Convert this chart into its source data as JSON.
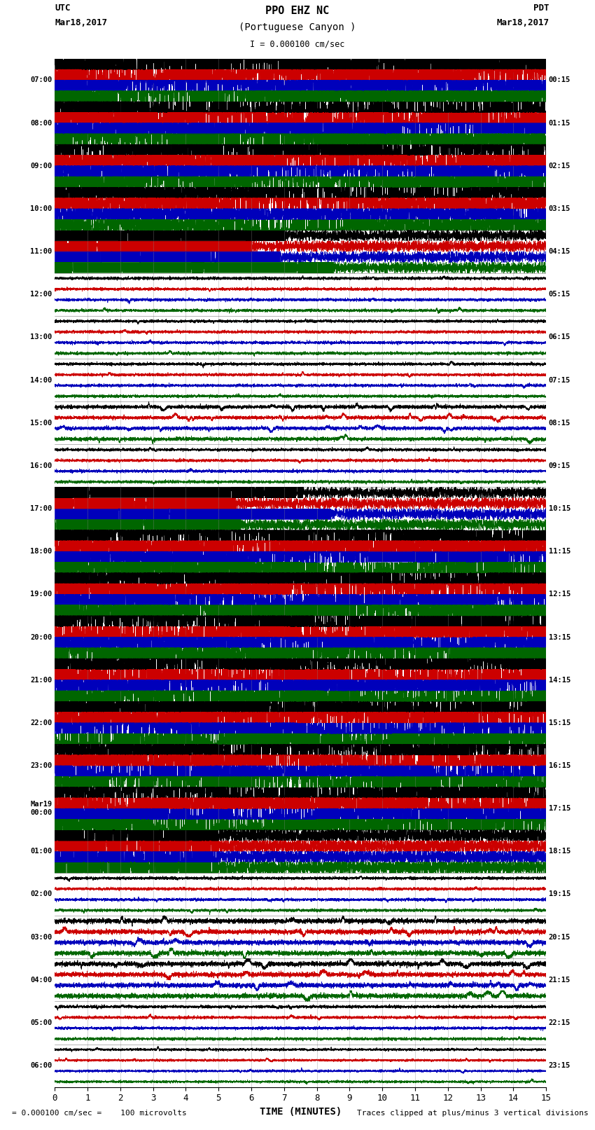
{
  "title_line1": "PPO EHZ NC",
  "title_line2": "(Portuguese Canyon )",
  "scale_text": "I = 0.000100 cm/sec",
  "utc_label": "UTC",
  "pdt_label": "PDT",
  "date_left": "Mar18,2017",
  "date_right": "Mar18,2017",
  "xlabel": "TIME (MINUTES)",
  "footer_left": "= 0.000100 cm/sec =    100 microvolts",
  "footer_right": "Traces clipped at plus/minus 3 vertical divisions",
  "xlim": [
    0,
    15
  ],
  "xticks": [
    0,
    1,
    2,
    3,
    4,
    5,
    6,
    7,
    8,
    9,
    10,
    11,
    12,
    13,
    14,
    15
  ],
  "bg_color": "#ffffff",
  "fig_width": 8.5,
  "fig_height": 16.13,
  "dpi": 100,
  "left_times": [
    "07:00",
    "08:00",
    "09:00",
    "10:00",
    "11:00",
    "12:00",
    "13:00",
    "14:00",
    "15:00",
    "16:00",
    "17:00",
    "18:00",
    "19:00",
    "20:00",
    "21:00",
    "22:00",
    "23:00",
    "Mar19\n00:00",
    "01:00",
    "02:00",
    "03:00",
    "04:00",
    "05:00",
    "06:00"
  ],
  "right_times": [
    "00:15",
    "01:15",
    "02:15",
    "03:15",
    "04:15",
    "05:15",
    "06:15",
    "07:15",
    "08:15",
    "09:15",
    "10:15",
    "11:15",
    "12:15",
    "13:15",
    "14:15",
    "15:15",
    "16:15",
    "17:15",
    "18:15",
    "19:15",
    "20:15",
    "21:15",
    "22:15",
    "23:15"
  ],
  "num_rows": 24,
  "colors": {
    "black": "#000000",
    "red": "#cc0000",
    "blue": "#0000bb",
    "green": "#006600",
    "white": "#ffffff"
  },
  "row_patterns": [
    "clipped",
    "clipped",
    "clipped",
    "clipped_partial",
    "transition",
    "quiet",
    "quiet",
    "quiet",
    "quiet_active",
    "quiet",
    "clipped_start",
    "clipped",
    "clipped",
    "clipped",
    "clipped",
    "clipped",
    "clipped_mixed",
    "clipped_heavy",
    "transition2",
    "quiet",
    "quiet_active2",
    "quiet_active3",
    "quiet",
    "quiet_end"
  ]
}
